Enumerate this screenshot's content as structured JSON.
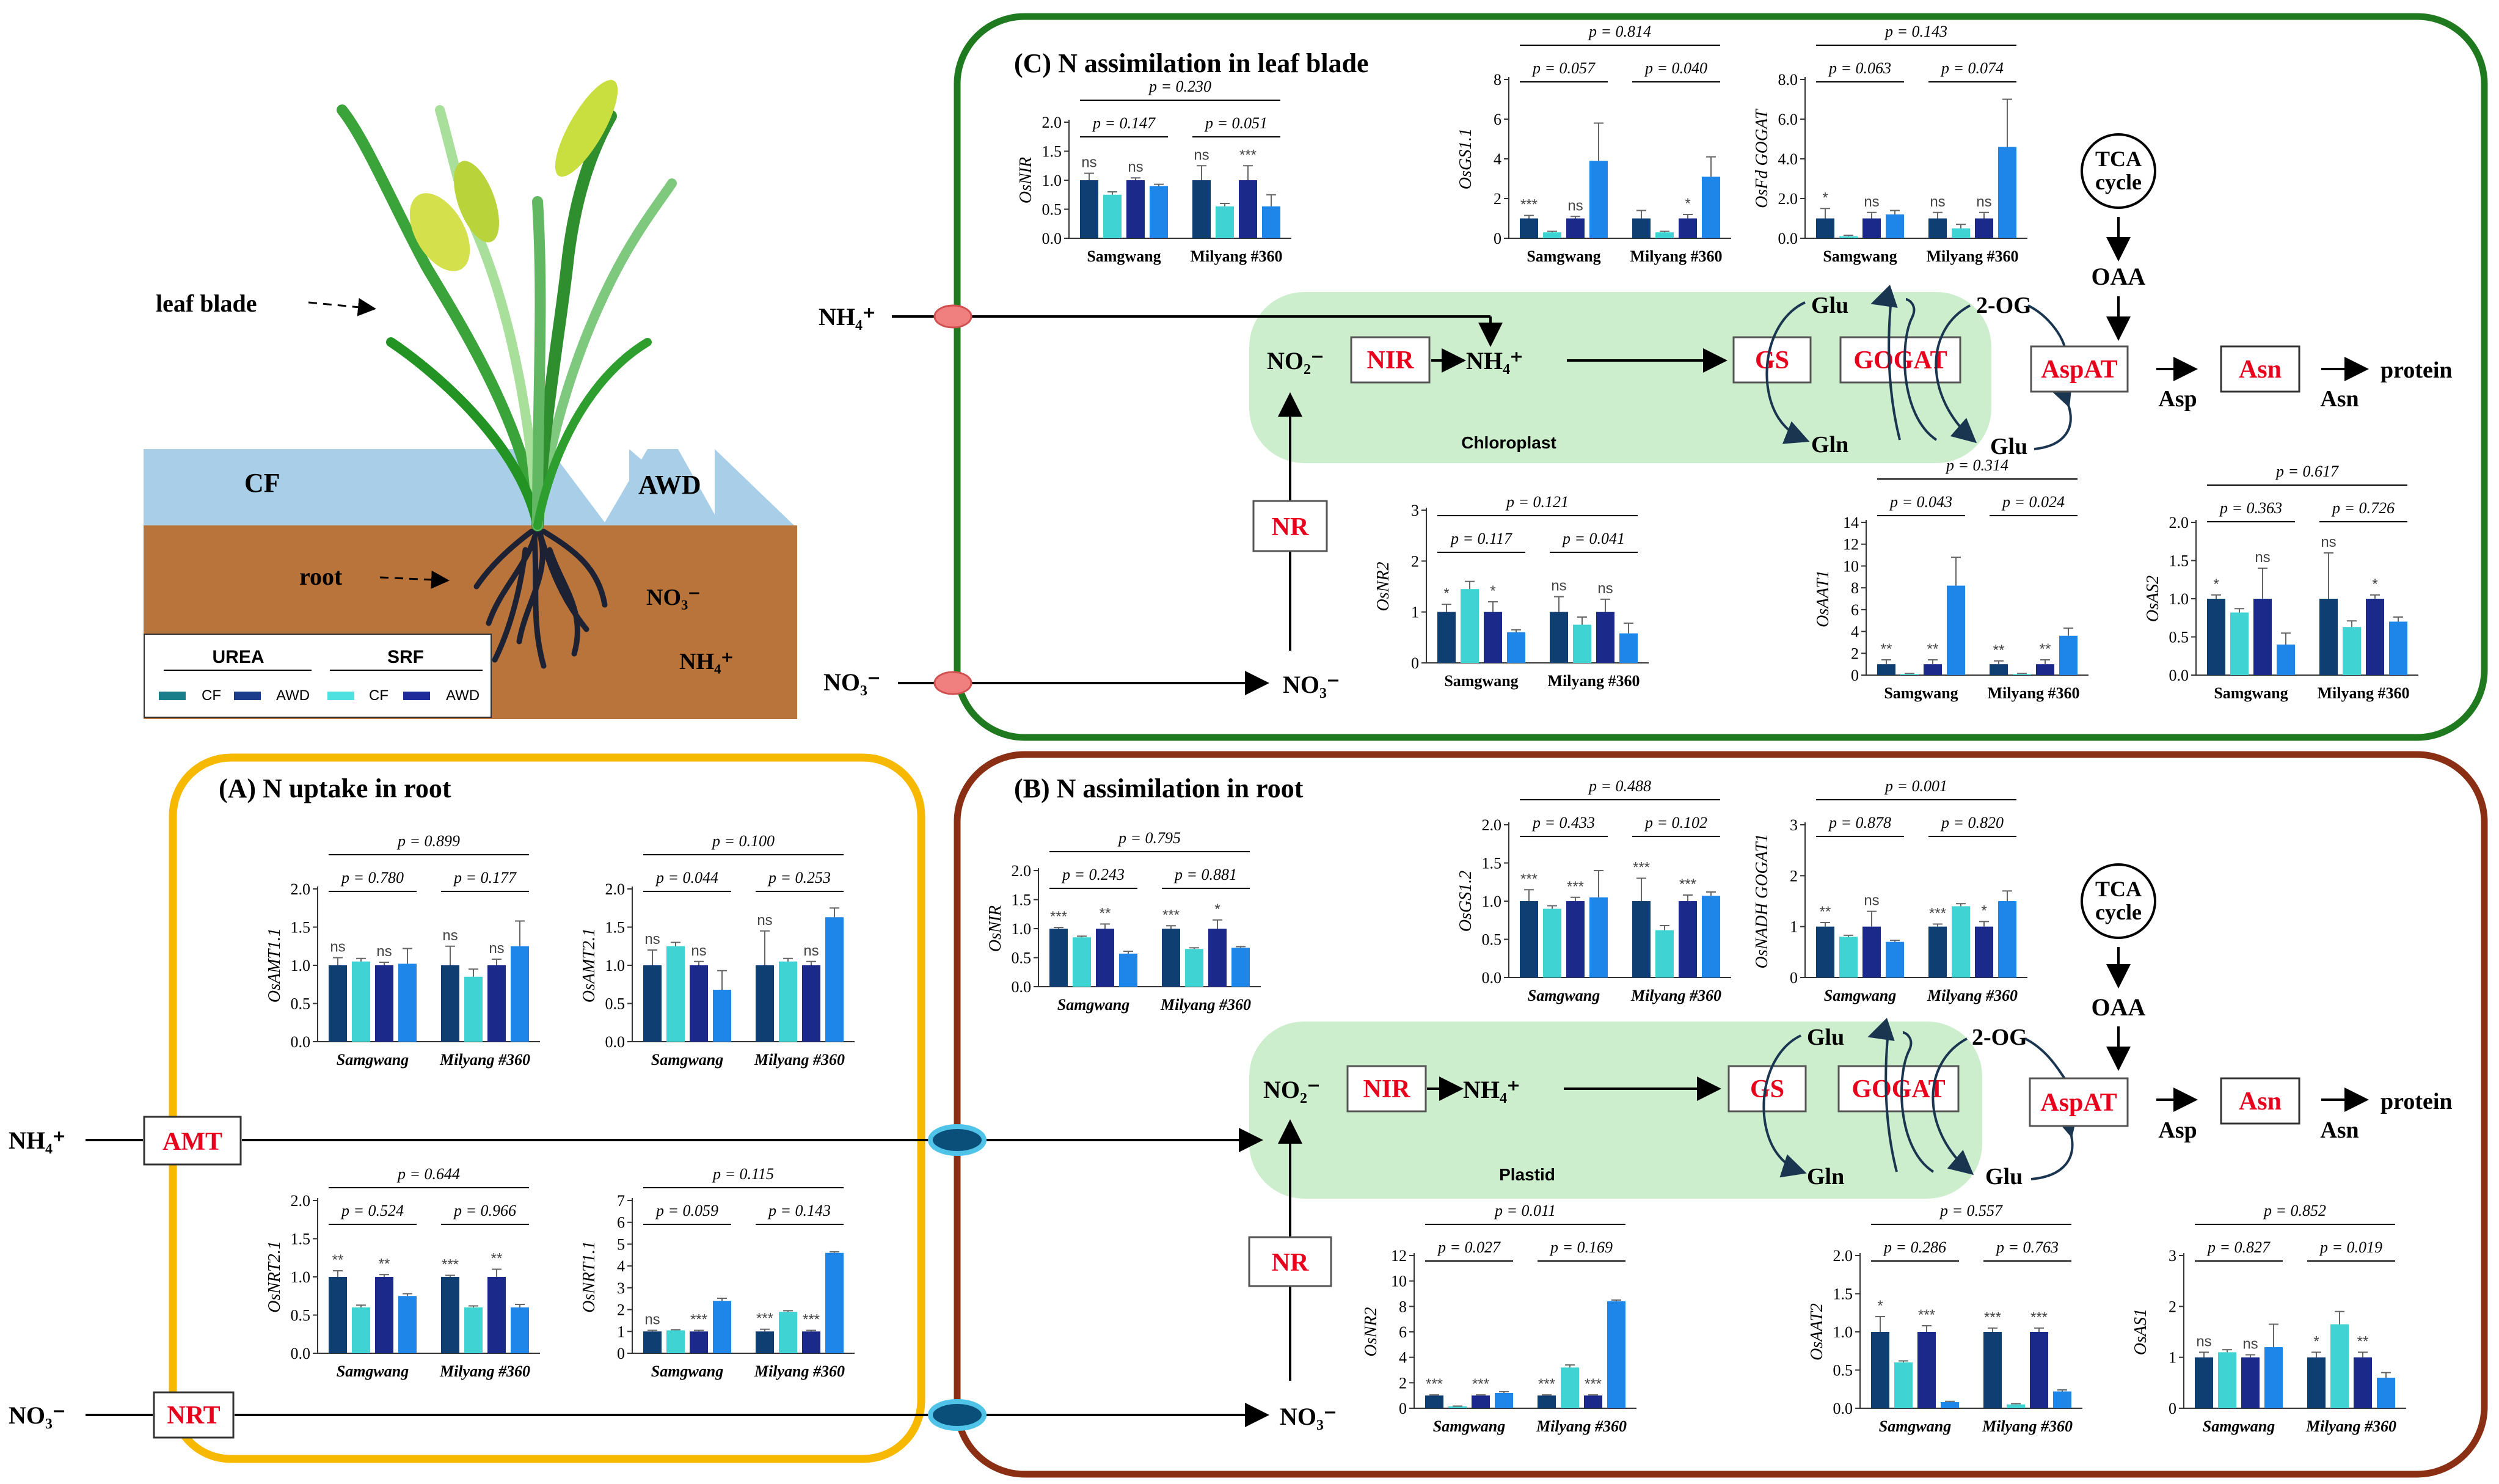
{
  "colors": {
    "cf_urea": "#0f3e73",
    "awd_urea": "#1b2a8a",
    "cf_srf": "#3fd3d3",
    "awd_srf": "#1e86e8",
    "panel_c_border": "#1f7a1f",
    "panel_b_border": "#8a2f13",
    "panel_a_border": "#f7b900",
    "chloroplast": "#cdeecd",
    "water": "#a9cfe8",
    "soil": "#b8743a",
    "enzyme_red": "#e8001c"
  },
  "legend": {
    "urea": "UREA",
    "srf": "SRF",
    "cf": "CF",
    "awd": "AWD"
  },
  "plant": {
    "leaf_blade": "leaf blade",
    "root": "root",
    "cf": "CF",
    "awd": "AWD",
    "no3": "NO₃⁻",
    "nh4": "NH₄⁺"
  },
  "panels": {
    "c": {
      "title": "(C)   N assimilation in leaf blade",
      "compartment": "Chloroplast"
    },
    "b": {
      "title": "(B)   N assimilation in root",
      "compartment": "Plastid"
    },
    "a": {
      "title": "(A)    N uptake in root"
    }
  },
  "pathway": {
    "nh4_in": "NH₄⁺",
    "no3_in": "NO₃⁻",
    "no3": "NO₃⁻",
    "no2": "NO₂⁻",
    "nh4": "NH₄⁺",
    "nir": "NIR",
    "nr": "NR",
    "gs": "GS",
    "gogat": "GOGAT",
    "glu": "Glu",
    "gln": "Gln",
    "og": "2-OG",
    "aspat": "AspAT",
    "asn": "Asn",
    "asp": "Asp",
    "protein": "protein",
    "tca": "TCA",
    "cycle": "cycle",
    "oaa": "OAA",
    "amt": "AMT",
    "nrt": "NRT"
  },
  "chart_data": [
    {
      "id": "c_nir",
      "type": "bar",
      "ylabel": "OsNIR",
      "yticks": [
        "0.0",
        "0.5",
        "1.0",
        "1.5",
        "2.0"
      ],
      "ymax": 2.0,
      "groups": [
        "Samgwang",
        "Milyang #360"
      ],
      "values": [
        [
          1.0,
          0.75,
          1.0,
          0.9
        ],
        [
          1.0,
          0.55,
          1.0,
          0.55
        ]
      ],
      "errors": [
        [
          0.12,
          0.05,
          0.04,
          0.03
        ],
        [
          0.25,
          0.05,
          0.25,
          0.2
        ]
      ],
      "sig": [
        [
          "ns",
          "",
          "ns",
          ""
        ],
        [
          "ns",
          "",
          "***",
          ""
        ]
      ],
      "p_all": "p = 0.230",
      "p_left": "p = 0.147",
      "p_right": "p = 0.051",
      "italic_groups": false
    },
    {
      "id": "c_gs11",
      "type": "bar",
      "ylabel": "OsGS1.1",
      "yticks": [
        "0",
        "2",
        "4",
        "6",
        "8"
      ],
      "ymax": 8,
      "groups": [
        "Samgwang",
        "Milyang #360"
      ],
      "values": [
        [
          1.0,
          0.3,
          1.0,
          3.9
        ],
        [
          1.0,
          0.3,
          1.0,
          3.1
        ]
      ],
      "errors": [
        [
          0.15,
          0.05,
          0.1,
          1.9
        ],
        [
          0.4,
          0.05,
          0.2,
          1.0
        ]
      ],
      "sig": [
        [
          "***",
          "",
          "ns",
          ""
        ],
        [
          "",
          "",
          "*",
          ""
        ]
      ],
      "p_all": "p = 0.814",
      "p_left": "p = 0.057",
      "p_right": "p = 0.040",
      "italic_groups": false
    },
    {
      "id": "c_fdgogat",
      "type": "bar",
      "ylabel": "OsFd GOGAT",
      "yticks": [
        "0.0",
        "2.0",
        "4.0",
        "6.0",
        "8.0"
      ],
      "ymax": 8.0,
      "groups": [
        "Samgwang",
        "Milyang #360"
      ],
      "values": [
        [
          1.0,
          0.1,
          1.0,
          1.2
        ],
        [
          1.0,
          0.5,
          1.0,
          4.6
        ]
      ],
      "errors": [
        [
          0.5,
          0.05,
          0.3,
          0.2
        ],
        [
          0.3,
          0.2,
          0.3,
          2.4
        ]
      ],
      "sig": [
        [
          "*",
          "",
          "ns",
          ""
        ],
        [
          "ns",
          "",
          "ns",
          ""
        ]
      ],
      "p_all": "p = 0.143",
      "p_left": "p = 0.063",
      "p_right": "p = 0.074",
      "italic_groups": false
    },
    {
      "id": "c_nr2",
      "type": "bar",
      "ylabel": "OsNR2",
      "yticks": [
        "0",
        "1",
        "2",
        "3"
      ],
      "ymax": 3,
      "groups": [
        "Samgwang",
        "Milyang #360"
      ],
      "values": [
        [
          1.0,
          1.45,
          1.0,
          0.6
        ],
        [
          1.0,
          0.75,
          1.0,
          0.58
        ]
      ],
      "errors": [
        [
          0.15,
          0.15,
          0.2,
          0.05
        ],
        [
          0.3,
          0.15,
          0.25,
          0.2
        ]
      ],
      "sig": [
        [
          "*",
          "",
          "*",
          ""
        ],
        [
          "ns",
          "",
          "ns",
          ""
        ]
      ],
      "p_all": "p = 0.121",
      "p_left": "p = 0.117",
      "p_right": "p = 0.041",
      "italic_groups": false
    },
    {
      "id": "c_aat1",
      "type": "bar",
      "ylabel": "OsAAT1",
      "yticks": [
        "0",
        "2",
        "4",
        "6",
        "8",
        "10",
        "12",
        "14"
      ],
      "ymax": 14,
      "groups": [
        "Samgwang",
        "Milyang #360"
      ],
      "values": [
        [
          1.0,
          0.1,
          1.0,
          8.2
        ],
        [
          1.0,
          0.1,
          1.0,
          3.6
        ]
      ],
      "errors": [
        [
          0.4,
          0.05,
          0.4,
          2.6
        ],
        [
          0.3,
          0.05,
          0.4,
          0.7
        ]
      ],
      "sig": [
        [
          "**",
          "",
          "**",
          ""
        ],
        [
          "**",
          "",
          "**",
          ""
        ]
      ],
      "p_all": "p = 0.314",
      "p_left": "p = 0.043",
      "p_right": "p = 0.024",
      "italic_groups": false
    },
    {
      "id": "c_as2",
      "type": "bar",
      "ylabel": "OsAS2",
      "yticks": [
        "0.0",
        "0.5",
        "1.0",
        "1.5",
        "2.0"
      ],
      "ymax": 2.0,
      "groups": [
        "Samgwang",
        "Milyang #360"
      ],
      "values": [
        [
          1.0,
          0.82,
          1.0,
          0.4
        ],
        [
          1.0,
          0.63,
          1.0,
          0.7
        ]
      ],
      "errors": [
        [
          0.05,
          0.05,
          0.4,
          0.15
        ],
        [
          0.6,
          0.08,
          0.05,
          0.06
        ]
      ],
      "sig": [
        [
          "*",
          "",
          "ns",
          ""
        ],
        [
          "ns",
          "",
          "*",
          ""
        ]
      ],
      "p_all": "p = 0.617",
      "p_left": "p = 0.363",
      "p_right": "p = 0.726",
      "italic_groups": false
    },
    {
      "id": "b_nir",
      "type": "bar",
      "ylabel": "OsNIR",
      "yticks": [
        "0.0",
        "0.5",
        "1.0",
        "1.5",
        "2.0"
      ],
      "ymax": 2.0,
      "groups": [
        "Samgwang",
        "Milyang #360"
      ],
      "values": [
        [
          1.0,
          0.85,
          1.0,
          0.57
        ],
        [
          1.0,
          0.65,
          1.0,
          0.67
        ]
      ],
      "errors": [
        [
          0.02,
          0.02,
          0.08,
          0.04
        ],
        [
          0.05,
          0.02,
          0.15,
          0.02
        ]
      ],
      "sig": [
        [
          "***",
          "",
          "**",
          ""
        ],
        [
          "***",
          "",
          "*",
          ""
        ]
      ],
      "p_all": "p = 0.795",
      "p_left": "p = 0.243",
      "p_right": "p = 0.881",
      "italic_groups": true
    },
    {
      "id": "b_gs12",
      "type": "bar",
      "ylabel": "OsGS1.2",
      "yticks": [
        "0.0",
        "0.5",
        "1.0",
        "1.5",
        "2.0"
      ],
      "ymax": 2.0,
      "groups": [
        "Samgwang",
        "Milyang #360"
      ],
      "values": [
        [
          1.0,
          0.9,
          1.0,
          1.05
        ],
        [
          1.0,
          0.62,
          1.0,
          1.07
        ]
      ],
      "errors": [
        [
          0.15,
          0.04,
          0.05,
          0.35
        ],
        [
          0.3,
          0.06,
          0.08,
          0.05
        ]
      ],
      "sig": [
        [
          "***",
          "",
          "***",
          ""
        ],
        [
          "***",
          "",
          "***",
          ""
        ]
      ],
      "p_all": "p = 0.488",
      "p_left": "p = 0.433",
      "p_right": "p = 0.102",
      "italic_groups": true
    },
    {
      "id": "b_nadhgogat",
      "type": "bar",
      "ylabel": "OsNADH GOGAT1",
      "yticks": [
        "0",
        "1",
        "2",
        "3"
      ],
      "ymax": 3,
      "groups": [
        "Samgwang",
        "Milyang #360"
      ],
      "values": [
        [
          1.0,
          0.8,
          1.0,
          0.7
        ],
        [
          1.0,
          1.4,
          1.0,
          1.5
        ]
      ],
      "errors": [
        [
          0.08,
          0.03,
          0.3,
          0.03
        ],
        [
          0.05,
          0.05,
          0.1,
          0.2
        ]
      ],
      "sig": [
        [
          "**",
          "",
          "ns",
          ""
        ],
        [
          "***",
          "",
          "*",
          ""
        ]
      ],
      "p_all": "p = 0.001",
      "p_left": "p = 0.878",
      "p_right": "p = 0.820",
      "italic_groups": true
    },
    {
      "id": "b_nr2",
      "type": "bar",
      "ylabel": "OsNR2",
      "yticks": [
        "0",
        "2",
        "4",
        "6",
        "8",
        "10",
        "12"
      ],
      "ymax": 12,
      "groups": [
        "Samgwang",
        "Milyang #360"
      ],
      "values": [
        [
          1.0,
          0.15,
          1.0,
          1.2
        ],
        [
          1.0,
          3.2,
          1.0,
          8.4
        ]
      ],
      "errors": [
        [
          0.05,
          0.02,
          0.05,
          0.1
        ],
        [
          0.05,
          0.2,
          0.05,
          0.1
        ]
      ],
      "sig": [
        [
          "***",
          "",
          "***",
          ""
        ],
        [
          "***",
          "",
          "***",
          ""
        ]
      ],
      "p_all": "p = 0.011",
      "p_left": "p = 0.027",
      "p_right": "p = 0.169",
      "italic_groups": true
    },
    {
      "id": "b_aat2",
      "type": "bar",
      "ylabel": "OsAAT2",
      "yticks": [
        "0.0",
        "0.5",
        "1.0",
        "1.5",
        "2.0"
      ],
      "ymax": 2.0,
      "groups": [
        "Samgwang",
        "Milyang #360"
      ],
      "values": [
        [
          1.0,
          0.6,
          1.0,
          0.08
        ],
        [
          1.0,
          0.05,
          1.0,
          0.22
        ]
      ],
      "errors": [
        [
          0.2,
          0.02,
          0.08,
          0.01
        ],
        [
          0.05,
          0.01,
          0.05,
          0.02
        ]
      ],
      "sig": [
        [
          "*",
          "",
          "***",
          ""
        ],
        [
          "***",
          "",
          "***",
          ""
        ]
      ],
      "p_all": "p = 0.557",
      "p_left": "p = 0.286",
      "p_right": "p = 0.763",
      "italic_groups": true
    },
    {
      "id": "b_as1",
      "type": "bar",
      "ylabel": "OsAS1",
      "yticks": [
        "0",
        "1",
        "2",
        "3"
      ],
      "ymax": 3,
      "groups": [
        "Samgwang",
        "Milyang #360"
      ],
      "values": [
        [
          1.0,
          1.1,
          1.0,
          1.2
        ],
        [
          1.0,
          1.65,
          1.0,
          0.6
        ]
      ],
      "errors": [
        [
          0.1,
          0.05,
          0.05,
          0.45
        ],
        [
          0.1,
          0.25,
          0.1,
          0.1
        ]
      ],
      "sig": [
        [
          "ns",
          "",
          "ns",
          ""
        ],
        [
          "*",
          "",
          "**",
          ""
        ]
      ],
      "p_all": "p = 0.852",
      "p_left": "p = 0.827",
      "p_right": "p = 0.019",
      "italic_groups": true
    },
    {
      "id": "a_amt11",
      "type": "bar",
      "ylabel": "OsAMT1.1",
      "yticks": [
        "0.0",
        "0.5",
        "1.0",
        "1.5",
        "2.0"
      ],
      "ymax": 2.0,
      "groups": [
        "Samgwang",
        "Milyang #360"
      ],
      "values": [
        [
          1.0,
          1.05,
          1.0,
          1.02
        ],
        [
          1.0,
          0.85,
          1.0,
          1.25
        ]
      ],
      "errors": [
        [
          0.1,
          0.04,
          0.04,
          0.2
        ],
        [
          0.25,
          0.1,
          0.08,
          0.33
        ]
      ],
      "sig": [
        [
          "ns",
          "",
          "ns",
          ""
        ],
        [
          "ns",
          "",
          "ns",
          ""
        ]
      ],
      "p_all": "p = 0.899",
      "p_left": "p = 0.780",
      "p_right": "p = 0.177",
      "italic_groups": true
    },
    {
      "id": "a_amt21",
      "type": "bar",
      "ylabel": "OsAMT2.1",
      "yticks": [
        "0.0",
        "0.5",
        "1.0",
        "1.5",
        "2.0"
      ],
      "ymax": 2.0,
      "groups": [
        "Samgwang",
        "Milyang #360"
      ],
      "values": [
        [
          1.0,
          1.25,
          1.0,
          0.68
        ],
        [
          1.0,
          1.05,
          1.0,
          1.63
        ]
      ],
      "errors": [
        [
          0.2,
          0.05,
          0.05,
          0.25
        ],
        [
          0.45,
          0.04,
          0.05,
          0.12
        ]
      ],
      "sig": [
        [
          "ns",
          "",
          "ns",
          ""
        ],
        [
          "ns",
          "",
          "ns",
          ""
        ]
      ],
      "p_all": "p = 0.100",
      "p_left": "p = 0.044",
      "p_right": "p = 0.253",
      "italic_groups": true
    },
    {
      "id": "a_nrt21",
      "type": "bar",
      "ylabel": "OsNRT2.1",
      "yticks": [
        "0.0",
        "0.5",
        "1.0",
        "1.5",
        "2.0"
      ],
      "ymax": 2.0,
      "groups": [
        "Samgwang",
        "Milyang #360"
      ],
      "values": [
        [
          1.0,
          0.6,
          1.0,
          0.75
        ],
        [
          1.0,
          0.6,
          1.0,
          0.6
        ]
      ],
      "errors": [
        [
          0.08,
          0.03,
          0.03,
          0.03
        ],
        [
          0.02,
          0.02,
          0.1,
          0.04
        ]
      ],
      "sig": [
        [
          "**",
          "",
          "**",
          ""
        ],
        [
          "***",
          "",
          "**",
          ""
        ]
      ],
      "p_all": "p = 0.644",
      "p_left": "p = 0.524",
      "p_right": "p = 0.966",
      "italic_groups": true
    },
    {
      "id": "a_nrt11",
      "type": "bar",
      "ylabel": "OsNRT1.1",
      "yticks": [
        "0",
        "1",
        "2",
        "3",
        "4",
        "5",
        "6",
        "7"
      ],
      "ymax": 7,
      "groups": [
        "Samgwang",
        "Milyang #360"
      ],
      "values": [
        [
          1.0,
          1.05,
          1.0,
          2.4
        ],
        [
          1.0,
          1.9,
          1.0,
          4.6
        ]
      ],
      "errors": [
        [
          0.05,
          0.03,
          0.05,
          0.12
        ],
        [
          0.1,
          0.05,
          0.05,
          0.05
        ]
      ],
      "sig": [
        [
          "ns",
          "",
          "***",
          ""
        ],
        [
          "***",
          "",
          "***",
          ""
        ]
      ],
      "p_all": "p = 0.115",
      "p_left": "p = 0.059",
      "p_right": "p = 0.143",
      "italic_groups": true
    }
  ]
}
